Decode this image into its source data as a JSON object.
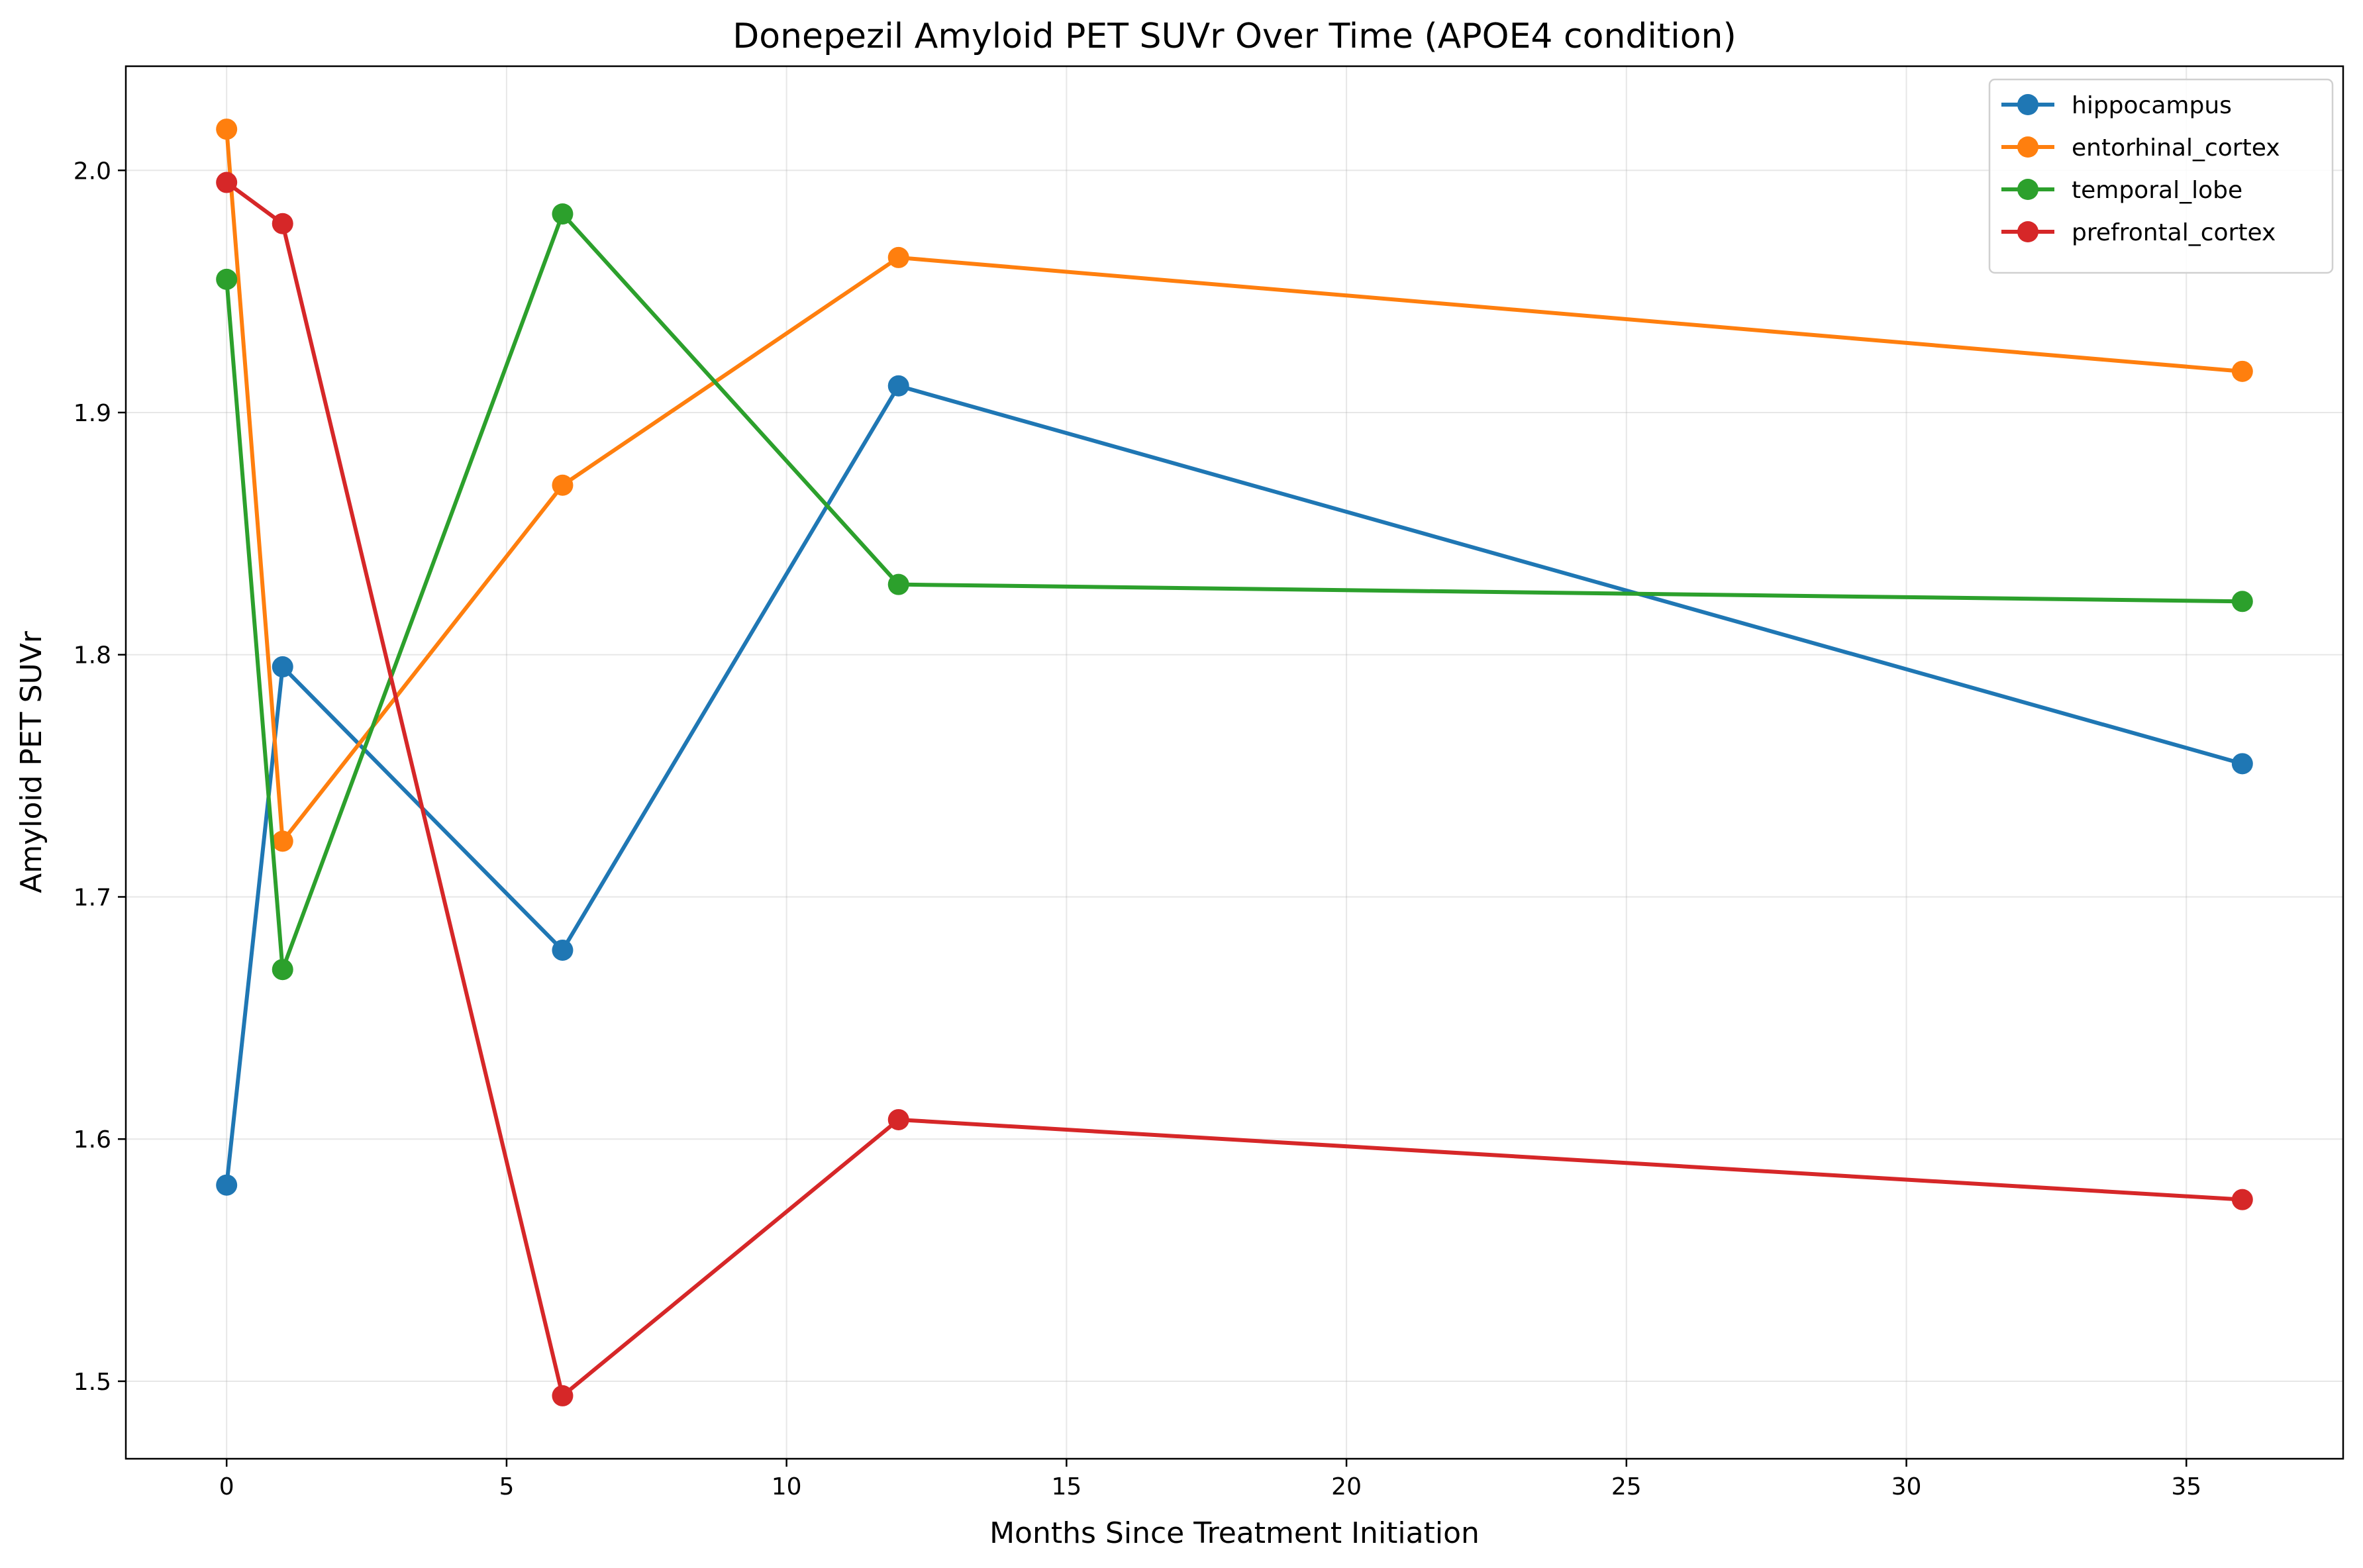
{
  "chart_data": {
    "type": "line",
    "title": "Donepezil Amyloid PET SUVr Over Time (APOE4 condition)",
    "xlabel": "Months Since Treatment Initiation",
    "ylabel": "Amyloid PET SUVr",
    "xlim": [
      -1.8,
      37.8
    ],
    "ylim": [
      1.468,
      2.043
    ],
    "xticks": [
      0,
      5,
      10,
      15,
      20,
      25,
      30,
      35
    ],
    "xtick_labels": [
      "0",
      "5",
      "10",
      "15",
      "20",
      "25",
      "30",
      "35"
    ],
    "yticks": [
      1.5,
      1.6,
      1.7,
      1.8,
      1.9,
      2.0
    ],
    "ytick_labels": [
      "1.5",
      "1.6",
      "1.7",
      "1.8",
      "1.9",
      "2.0"
    ],
    "grid": true,
    "legend_position": "top-right",
    "x": [
      0,
      1,
      6,
      12,
      36
    ],
    "series": [
      {
        "name": "hippocampus",
        "color": "#1f77b4",
        "values": [
          1.581,
          1.795,
          1.678,
          1.911,
          1.755
        ]
      },
      {
        "name": "entorhinal_cortex",
        "color": "#ff7f0e",
        "values": [
          2.017,
          1.723,
          1.87,
          1.964,
          1.917
        ]
      },
      {
        "name": "temporal_lobe",
        "color": "#2ca02c",
        "values": [
          1.955,
          1.67,
          1.982,
          1.829,
          1.822
        ]
      },
      {
        "name": "prefrontal_cortex",
        "color": "#d62728",
        "values": [
          1.995,
          1.978,
          1.494,
          1.608,
          1.575
        ]
      }
    ]
  }
}
